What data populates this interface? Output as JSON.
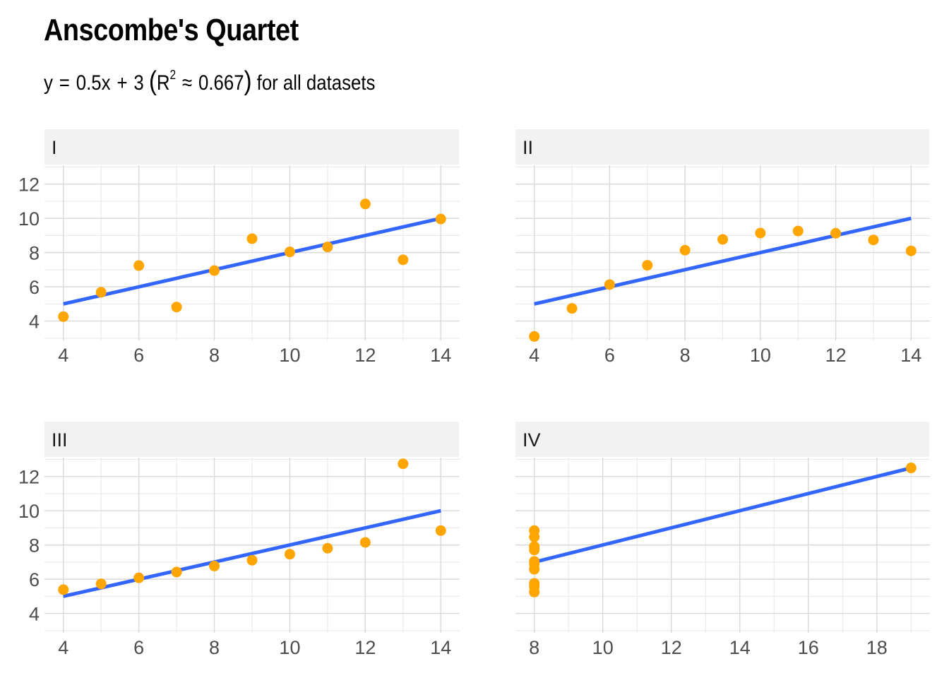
{
  "title": "Anscombe's Quartet",
  "subtitle": {
    "y": "y",
    "eq": "=",
    "coef": "0.5x",
    "plus": "+",
    "intercept": "3",
    "open": "(",
    "r": "R",
    "r_exp": "2",
    "approx": "≈",
    "r2": "0.667",
    "close": ")",
    "tail": "for all datasets"
  },
  "colors": {
    "points": "#FFA500",
    "line": "#3366FF",
    "strip": "#F2F2F2",
    "grid_major": "#D9D9D9",
    "grid_minor": "#EBEBEB"
  },
  "chart_data": [
    {
      "type": "scatter",
      "panel": "I",
      "x": [
        10,
        8,
        13,
        9,
        11,
        14,
        6,
        4,
        12,
        7,
        5
      ],
      "y": [
        8.04,
        6.95,
        7.58,
        8.81,
        8.33,
        9.96,
        7.24,
        4.26,
        10.84,
        4.82,
        5.68
      ],
      "fit": {
        "slope": 0.5,
        "intercept": 3,
        "x_range": [
          4,
          14
        ]
      },
      "xlim": [
        3.5,
        14.5
      ],
      "ylim": [
        2.87,
        13.1
      ],
      "xticks": [
        4,
        6,
        8,
        10,
        12,
        14
      ],
      "yticks": [
        4,
        6,
        8,
        10,
        12
      ],
      "grid": true
    },
    {
      "type": "scatter",
      "panel": "II",
      "x": [
        10,
        8,
        13,
        9,
        11,
        14,
        6,
        4,
        12,
        7,
        5
      ],
      "y": [
        9.14,
        8.14,
        8.74,
        8.77,
        9.26,
        8.1,
        6.13,
        3.1,
        9.13,
        7.26,
        4.74
      ],
      "fit": {
        "slope": 0.5,
        "intercept": 3,
        "x_range": [
          4,
          14
        ]
      },
      "xlim": [
        3.5,
        14.5
      ],
      "ylim": [
        2.87,
        13.1
      ],
      "xticks": [
        4,
        6,
        8,
        10,
        12,
        14
      ],
      "yticks": [
        4,
        6,
        8,
        10,
        12
      ],
      "grid": true
    },
    {
      "type": "scatter",
      "panel": "III",
      "x": [
        10,
        8,
        13,
        9,
        11,
        14,
        6,
        4,
        12,
        7,
        5
      ],
      "y": [
        7.46,
        6.77,
        12.74,
        7.11,
        7.81,
        8.84,
        6.08,
        5.39,
        8.15,
        6.42,
        5.73
      ],
      "fit": {
        "slope": 0.5,
        "intercept": 3,
        "x_range": [
          4,
          14
        ]
      },
      "xlim": [
        3.5,
        14.5
      ],
      "ylim": [
        2.87,
        13.1
      ],
      "xticks": [
        4,
        6,
        8,
        10,
        12,
        14
      ],
      "yticks": [
        4,
        6,
        8,
        10,
        12
      ],
      "grid": true
    },
    {
      "type": "scatter",
      "panel": "IV",
      "x": [
        8,
        8,
        8,
        8,
        8,
        8,
        8,
        19,
        8,
        8,
        8
      ],
      "y": [
        6.58,
        5.76,
        7.71,
        8.84,
        8.47,
        7.04,
        5.25,
        12.5,
        5.56,
        7.91,
        6.89
      ],
      "fit": {
        "slope": 0.5,
        "intercept": 3,
        "x_range": [
          8,
          19
        ]
      },
      "xlim": [
        7.45,
        19.55
      ],
      "ylim": [
        2.87,
        13.1
      ],
      "xticks": [
        8,
        10,
        12,
        14,
        16,
        18
      ],
      "yticks": [
        4,
        6,
        8,
        10,
        12
      ],
      "grid": true
    }
  ]
}
